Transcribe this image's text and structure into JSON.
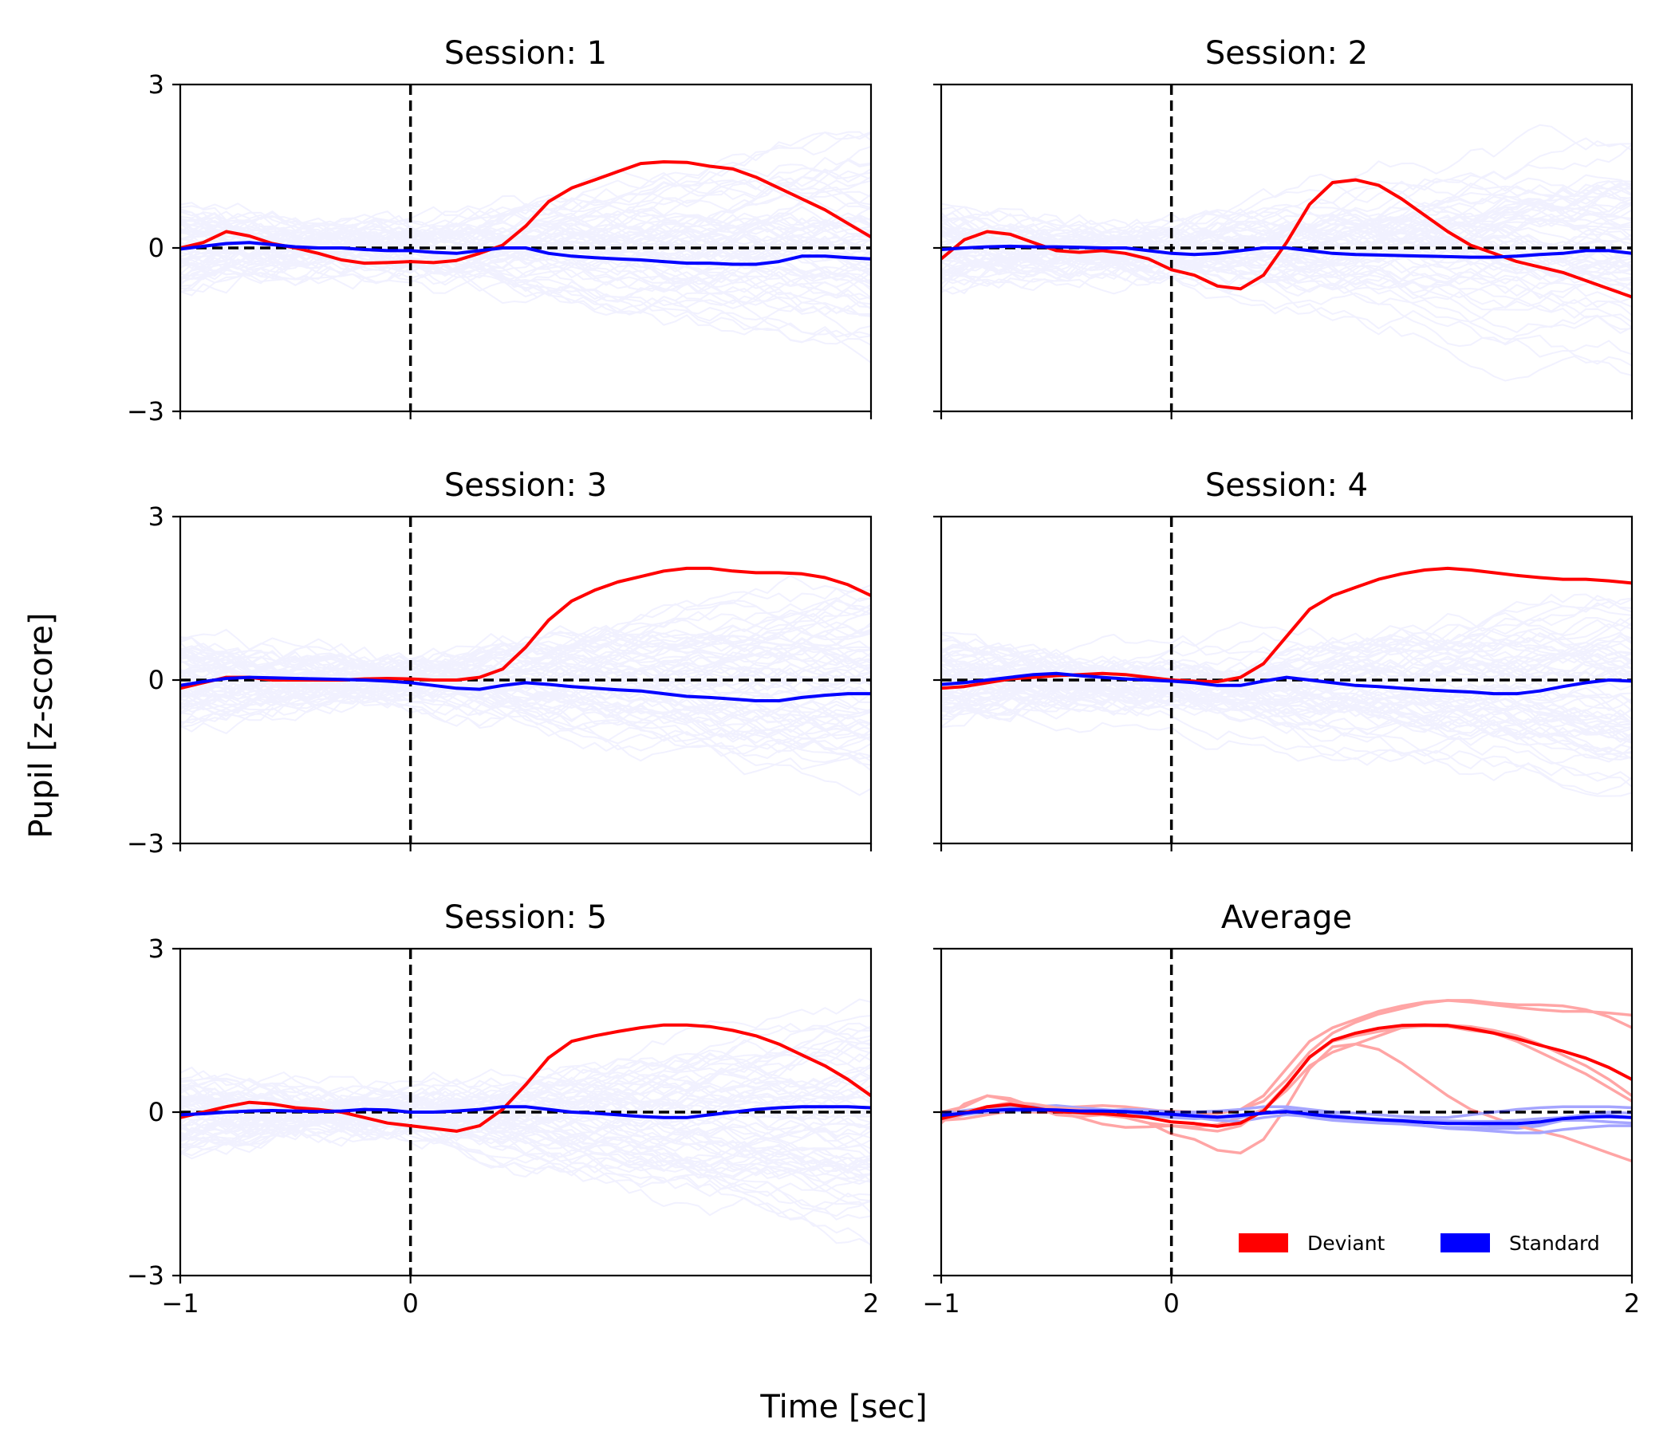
{
  "figure": {
    "ylabel": "Pupil [z-score]",
    "xlabel": "Time [sec]",
    "colors": {
      "deviant": "#ff0000",
      "standard": "#0000ff",
      "zero_line": "#000000",
      "trace_blue": "#0000ff"
    }
  },
  "legend": {
    "placement": "lower-right of Average panel",
    "entries": [
      {
        "label": "Deviant",
        "color": "#ff0000"
      },
      {
        "label": "Standard",
        "color": "#0000ff"
      }
    ]
  },
  "chart_data": [
    {
      "type": "line",
      "title": "Session: 1",
      "xlim": [
        -1,
        2
      ],
      "ylim": [
        -3,
        3
      ],
      "xticks": [
        -1,
        0,
        2
      ],
      "xtick_labels": [
        "",
        "",
        ""
      ],
      "yticks": [
        3,
        0,
        -3
      ],
      "ytick_labels": [
        "3",
        "0",
        "−3"
      ],
      "vline_x": 0,
      "hline_y": 0,
      "background_trials": true,
      "series": [
        {
          "name": "Deviant",
          "color": "#ff0000",
          "x": [
            -1,
            -0.9,
            -0.8,
            -0.7,
            -0.6,
            -0.5,
            -0.4,
            -0.3,
            -0.2,
            -0.1,
            0,
            0.1,
            0.2,
            0.3,
            0.4,
            0.5,
            0.6,
            0.7,
            0.8,
            0.9,
            1.0,
            1.1,
            1.2,
            1.3,
            1.4,
            1.5,
            1.6,
            1.7,
            1.8,
            1.9,
            2.0
          ],
          "y": [
            0,
            0.1,
            0.3,
            0.22,
            0.08,
            0,
            -0.1,
            -0.22,
            -0.28,
            -0.27,
            -0.25,
            -0.27,
            -0.23,
            -0.1,
            0.05,
            0.4,
            0.85,
            1.1,
            1.25,
            1.4,
            1.55,
            1.58,
            1.57,
            1.5,
            1.45,
            1.3,
            1.1,
            0.9,
            0.7,
            0.45,
            0.2
          ]
        },
        {
          "name": "Standard",
          "color": "#0000ff",
          "x": [
            -1,
            -0.9,
            -0.8,
            -0.7,
            -0.6,
            -0.5,
            -0.4,
            -0.3,
            -0.2,
            -0.1,
            0,
            0.1,
            0.2,
            0.3,
            0.4,
            0.5,
            0.6,
            0.7,
            0.8,
            0.9,
            1.0,
            1.1,
            1.2,
            1.3,
            1.4,
            1.5,
            1.6,
            1.7,
            1.8,
            1.9,
            2.0
          ],
          "y": [
            -0.02,
            0.03,
            0.08,
            0.1,
            0.06,
            0.02,
            0,
            0,
            -0.03,
            -0.05,
            -0.05,
            -0.08,
            -0.1,
            -0.05,
            0,
            0,
            -0.1,
            -0.15,
            -0.18,
            -0.2,
            -0.22,
            -0.25,
            -0.28,
            -0.28,
            -0.3,
            -0.3,
            -0.25,
            -0.15,
            -0.15,
            -0.18,
            -0.2
          ]
        }
      ]
    },
    {
      "type": "line",
      "title": "Session: 2",
      "xlim": [
        -1,
        2
      ],
      "ylim": [
        -3,
        3
      ],
      "xticks": [
        -1,
        0,
        2
      ],
      "xtick_labels": [
        "",
        "",
        ""
      ],
      "yticks": [
        3,
        0,
        -3
      ],
      "ytick_labels": [
        "",
        "",
        ""
      ],
      "vline_x": 0,
      "hline_y": 0,
      "background_trials": true,
      "series": [
        {
          "name": "Deviant",
          "color": "#ff0000",
          "x": [
            -1,
            -0.9,
            -0.8,
            -0.7,
            -0.6,
            -0.5,
            -0.4,
            -0.3,
            -0.2,
            -0.1,
            0,
            0.1,
            0.2,
            0.3,
            0.4,
            0.5,
            0.6,
            0.7,
            0.8,
            0.9,
            1.0,
            1.1,
            1.2,
            1.3,
            1.4,
            1.5,
            1.6,
            1.7,
            1.8,
            1.9,
            2.0
          ],
          "y": [
            -0.2,
            0.15,
            0.3,
            0.25,
            0.1,
            -0.05,
            -0.08,
            -0.05,
            -0.1,
            -0.2,
            -0.4,
            -0.5,
            -0.7,
            -0.75,
            -0.5,
            0.1,
            0.8,
            1.2,
            1.25,
            1.15,
            0.9,
            0.6,
            0.3,
            0.05,
            -0.1,
            -0.25,
            -0.35,
            -0.45,
            -0.6,
            -0.75,
            -0.9
          ]
        },
        {
          "name": "Standard",
          "color": "#0000ff",
          "x": [
            -1,
            -0.9,
            -0.8,
            -0.7,
            -0.6,
            -0.5,
            -0.4,
            -0.3,
            -0.2,
            -0.1,
            0,
            0.1,
            0.2,
            0.3,
            0.4,
            0.5,
            0.6,
            0.7,
            0.8,
            0.9,
            1.0,
            1.1,
            1.2,
            1.3,
            1.4,
            1.5,
            1.6,
            1.7,
            1.8,
            1.9,
            2.0
          ],
          "y": [
            -0.03,
            0,
            0.02,
            0.03,
            0.02,
            0.02,
            0.01,
            0,
            0,
            -0.05,
            -0.1,
            -0.12,
            -0.1,
            -0.05,
            0,
            0,
            -0.05,
            -0.1,
            -0.12,
            -0.13,
            -0.14,
            -0.15,
            -0.16,
            -0.17,
            -0.17,
            -0.15,
            -0.12,
            -0.1,
            -0.05,
            -0.05,
            -0.1
          ]
        }
      ]
    },
    {
      "type": "line",
      "title": "Session: 3",
      "xlim": [
        -1,
        2
      ],
      "ylim": [
        -3,
        3
      ],
      "xticks": [
        -1,
        0,
        2
      ],
      "xtick_labels": [
        "",
        "",
        ""
      ],
      "yticks": [
        3,
        0,
        -3
      ],
      "ytick_labels": [
        "3",
        "0",
        "−3"
      ],
      "vline_x": 0,
      "hline_y": 0,
      "background_trials": true,
      "series": [
        {
          "name": "Deviant",
          "color": "#ff0000",
          "x": [
            -1,
            -0.9,
            -0.8,
            -0.7,
            -0.6,
            -0.5,
            -0.4,
            -0.3,
            -0.2,
            -0.1,
            0,
            0.1,
            0.2,
            0.3,
            0.4,
            0.5,
            0.6,
            0.7,
            0.8,
            0.9,
            1.0,
            1.1,
            1.2,
            1.3,
            1.4,
            1.5,
            1.6,
            1.7,
            1.8,
            1.9,
            2.0
          ],
          "y": [
            -0.15,
            -0.05,
            0.05,
            0.05,
            0,
            0,
            0,
            0,
            0.02,
            0.03,
            0.02,
            0,
            0,
            0.05,
            0.2,
            0.6,
            1.1,
            1.45,
            1.65,
            1.8,
            1.9,
            2.0,
            2.05,
            2.05,
            2.0,
            1.97,
            1.97,
            1.95,
            1.88,
            1.75,
            1.55
          ]
        },
        {
          "name": "Standard",
          "color": "#0000ff",
          "x": [
            -1,
            -0.9,
            -0.8,
            -0.7,
            -0.6,
            -0.5,
            -0.4,
            -0.3,
            -0.2,
            -0.1,
            0,
            0.1,
            0.2,
            0.3,
            0.4,
            0.5,
            0.6,
            0.7,
            0.8,
            0.9,
            1.0,
            1.1,
            1.2,
            1.3,
            1.4,
            1.5,
            1.6,
            1.7,
            1.8,
            1.9,
            2.0
          ],
          "y": [
            -0.1,
            -0.03,
            0.03,
            0.05,
            0.04,
            0.03,
            0.02,
            0.01,
            0,
            -0.02,
            -0.05,
            -0.1,
            -0.15,
            -0.17,
            -0.1,
            -0.05,
            -0.08,
            -0.12,
            -0.15,
            -0.18,
            -0.2,
            -0.25,
            -0.3,
            -0.32,
            -0.35,
            -0.38,
            -0.38,
            -0.32,
            -0.28,
            -0.25,
            -0.25
          ]
        }
      ]
    },
    {
      "type": "line",
      "title": "Session: 4",
      "xlim": [
        -1,
        2
      ],
      "ylim": [
        -3,
        3
      ],
      "xticks": [
        -1,
        0,
        2
      ],
      "xtick_labels": [
        "",
        "",
        ""
      ],
      "yticks": [
        3,
        0,
        -3
      ],
      "ytick_labels": [
        "",
        "",
        ""
      ],
      "vline_x": 0,
      "hline_y": 0,
      "background_trials": true,
      "series": [
        {
          "name": "Deviant",
          "color": "#ff0000",
          "x": [
            -1,
            -0.9,
            -0.8,
            -0.7,
            -0.6,
            -0.5,
            -0.4,
            -0.3,
            -0.2,
            -0.1,
            0,
            0.1,
            0.2,
            0.3,
            0.4,
            0.5,
            0.6,
            0.7,
            0.8,
            0.9,
            1.0,
            1.1,
            1.2,
            1.3,
            1.4,
            1.5,
            1.6,
            1.7,
            1.8,
            1.9,
            2.0
          ],
          "y": [
            -0.15,
            -0.12,
            -0.05,
            0.02,
            0.05,
            0.08,
            0.1,
            0.12,
            0.1,
            0.05,
            0,
            -0.02,
            -0.03,
            0.05,
            0.3,
            0.8,
            1.3,
            1.55,
            1.7,
            1.85,
            1.95,
            2.02,
            2.05,
            2.02,
            1.97,
            1.92,
            1.88,
            1.85,
            1.85,
            1.82,
            1.78
          ]
        },
        {
          "name": "Standard",
          "color": "#0000ff",
          "x": [
            -1,
            -0.9,
            -0.8,
            -0.7,
            -0.6,
            -0.5,
            -0.4,
            -0.3,
            -0.2,
            -0.1,
            0,
            0.1,
            0.2,
            0.3,
            0.4,
            0.5,
            0.6,
            0.7,
            0.8,
            0.9,
            1.0,
            1.1,
            1.2,
            1.3,
            1.4,
            1.5,
            1.6,
            1.7,
            1.8,
            1.9,
            2.0
          ],
          "y": [
            -0.08,
            -0.05,
            0,
            0.05,
            0.1,
            0.12,
            0.08,
            0.05,
            0.02,
            0,
            -0.02,
            -0.05,
            -0.1,
            -0.1,
            -0.02,
            0.05,
            0,
            -0.05,
            -0.1,
            -0.12,
            -0.15,
            -0.18,
            -0.2,
            -0.22,
            -0.25,
            -0.25,
            -0.2,
            -0.12,
            -0.05,
            0,
            -0.02
          ]
        }
      ]
    },
    {
      "type": "line",
      "title": "Session: 5",
      "xlim": [
        -1,
        2
      ],
      "ylim": [
        -3,
        3
      ],
      "xticks": [
        -1,
        0,
        2
      ],
      "xtick_labels": [
        "−1",
        "0",
        "2"
      ],
      "yticks": [
        3,
        0,
        -3
      ],
      "ytick_labels": [
        "3",
        "0",
        "−3"
      ],
      "vline_x": 0,
      "hline_y": 0,
      "background_trials": true,
      "series": [
        {
          "name": "Deviant",
          "color": "#ff0000",
          "x": [
            -1,
            -0.9,
            -0.8,
            -0.7,
            -0.6,
            -0.5,
            -0.4,
            -0.3,
            -0.2,
            -0.1,
            0,
            0.1,
            0.2,
            0.3,
            0.4,
            0.5,
            0.6,
            0.7,
            0.8,
            0.9,
            1.0,
            1.1,
            1.2,
            1.3,
            1.4,
            1.5,
            1.6,
            1.7,
            1.8,
            1.9,
            2.0
          ],
          "y": [
            -0.1,
            0,
            0.1,
            0.18,
            0.15,
            0.08,
            0.05,
            0,
            -0.1,
            -0.2,
            -0.25,
            -0.3,
            -0.35,
            -0.25,
            0.05,
            0.5,
            1.0,
            1.3,
            1.4,
            1.48,
            1.55,
            1.6,
            1.6,
            1.57,
            1.5,
            1.4,
            1.25,
            1.05,
            0.85,
            0.6,
            0.3
          ]
        },
        {
          "name": "Standard",
          "color": "#0000ff",
          "x": [
            -1,
            -0.9,
            -0.8,
            -0.7,
            -0.6,
            -0.5,
            -0.4,
            -0.3,
            -0.2,
            -0.1,
            0,
            0.1,
            0.2,
            0.3,
            0.4,
            0.5,
            0.6,
            0.7,
            0.8,
            0.9,
            1.0,
            1.1,
            1.2,
            1.3,
            1.4,
            1.5,
            1.6,
            1.7,
            1.8,
            1.9,
            2.0
          ],
          "y": [
            -0.05,
            -0.03,
            0,
            0.02,
            0.03,
            0.02,
            0.01,
            0.02,
            0.05,
            0.04,
            0,
            0,
            0.02,
            0.05,
            0.1,
            0.1,
            0.05,
            0,
            -0.02,
            -0.05,
            -0.08,
            -0.1,
            -0.1,
            -0.05,
            0,
            0.05,
            0.08,
            0.1,
            0.1,
            0.1,
            0.08
          ]
        }
      ]
    },
    {
      "type": "line",
      "title": "Average",
      "xlim": [
        -1,
        2
      ],
      "ylim": [
        -3,
        3
      ],
      "xticks": [
        -1,
        0,
        2
      ],
      "xtick_labels": [
        "−1",
        "0",
        "2"
      ],
      "yticks": [
        3,
        0,
        -3
      ],
      "ytick_labels": [
        "",
        "",
        ""
      ],
      "vline_x": 0,
      "hline_y": 0,
      "background_trials": false,
      "series": [
        {
          "name": "Deviant",
          "color": "#ff0000",
          "x": [
            -1,
            -0.9,
            -0.8,
            -0.7,
            -0.6,
            -0.5,
            -0.4,
            -0.3,
            -0.2,
            -0.1,
            0,
            0.1,
            0.2,
            0.3,
            0.4,
            0.5,
            0.6,
            0.7,
            0.8,
            0.9,
            1.0,
            1.1,
            1.2,
            1.3,
            1.4,
            1.5,
            1.6,
            1.7,
            1.8,
            1.9,
            2.0
          ],
          "y": [
            -0.12,
            -0.02,
            0.1,
            0.14,
            0.08,
            0.01,
            -0.01,
            -0.03,
            -0.06,
            -0.1,
            -0.18,
            -0.21,
            -0.26,
            -0.2,
            0.02,
            0.48,
            1.01,
            1.32,
            1.45,
            1.54,
            1.59,
            1.6,
            1.59,
            1.53,
            1.45,
            1.35,
            1.23,
            1.12,
            0.99,
            0.82,
            0.6
          ]
        },
        {
          "name": "Standard",
          "color": "#0000ff",
          "x": [
            -1,
            -0.9,
            -0.8,
            -0.7,
            -0.6,
            -0.5,
            -0.4,
            -0.3,
            -0.2,
            -0.1,
            0,
            0.1,
            0.2,
            0.3,
            0.4,
            0.5,
            0.6,
            0.7,
            0.8,
            0.9,
            1.0,
            1.1,
            1.2,
            1.3,
            1.4,
            1.5,
            1.6,
            1.7,
            1.8,
            1.9,
            2.0
          ],
          "y": [
            -0.06,
            -0.02,
            0.03,
            0.05,
            0.05,
            0.04,
            0.02,
            0.02,
            0.01,
            -0.02,
            -0.04,
            -0.07,
            -0.09,
            -0.06,
            -0.02,
            0.01,
            -0.04,
            -0.08,
            -0.11,
            -0.14,
            -0.16,
            -0.19,
            -0.21,
            -0.21,
            -0.21,
            -0.21,
            -0.18,
            -0.12,
            -0.09,
            -0.08,
            -0.1
          ]
        }
      ]
    }
  ]
}
